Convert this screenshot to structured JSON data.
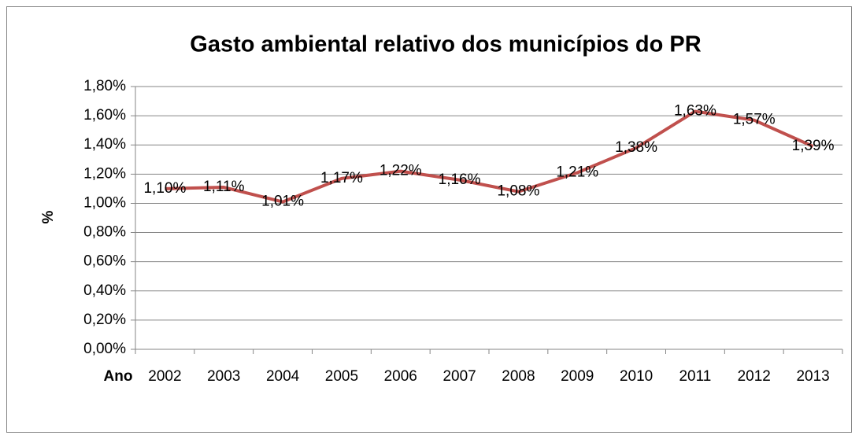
{
  "chart_data": {
    "type": "line",
    "title": "Gasto ambiental relativo dos municípios do PR",
    "y_label": "%",
    "x_label": "Ano",
    "categories": [
      "2002",
      "2003",
      "2004",
      "2005",
      "2006",
      "2007",
      "2008",
      "2009",
      "2010",
      "2011",
      "2012",
      "2013"
    ],
    "series": [
      {
        "name": "Gasto ambiental relativo",
        "color": "#c0504d",
        "values": [
          1.1,
          1.11,
          1.01,
          1.17,
          1.22,
          1.16,
          1.08,
          1.21,
          1.38,
          1.63,
          1.57,
          1.39
        ],
        "value_labels": [
          "1,10%",
          "1,11%",
          "1,01%",
          "1,17%",
          "1,22%",
          "1,16%",
          "1,08%",
          "1,21%",
          "1,38%",
          "1,63%",
          "1,57%",
          "1,39%"
        ]
      }
    ],
    "ylim": [
      0,
      1.8
    ],
    "yticks": [
      {
        "value": 0,
        "label": "0,00%"
      },
      {
        "value": 0.2,
        "label": "0,20%"
      },
      {
        "value": 0.4,
        "label": "0,40%"
      },
      {
        "value": 0.6,
        "label": "0,60%"
      },
      {
        "value": 0.8,
        "label": "0,80%"
      },
      {
        "value": 1.0,
        "label": "1,00%"
      },
      {
        "value": 1.2,
        "label": "1,20%"
      },
      {
        "value": 1.4,
        "label": "1,40%"
      },
      {
        "value": 1.6,
        "label": "1,60%"
      },
      {
        "value": 1.8,
        "label": "1,80%"
      }
    ],
    "grid": true
  }
}
